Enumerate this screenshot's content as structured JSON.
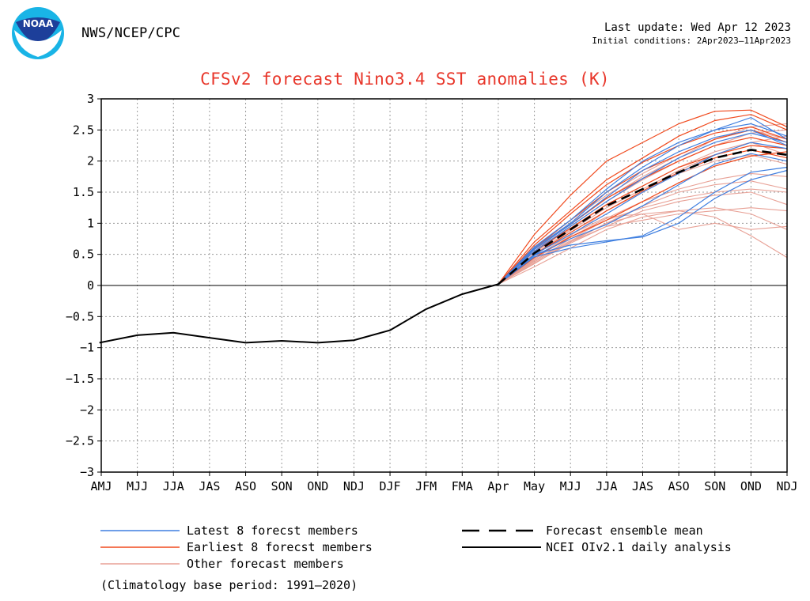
{
  "header": {
    "logo_text": "NOAA",
    "agency": "NWS/NCEP/CPC",
    "last_update": "Last update: Wed Apr 12 2023",
    "initial_conditions": "Initial conditions: 2Apr2023–11Apr2023"
  },
  "chart_data": {
    "type": "line",
    "title": "CFSv2 forecast Nino3.4 SST anomalies (K)",
    "xlabel": "",
    "ylabel": "",
    "ylim": [
      -3,
      3
    ],
    "yticks": [
      3,
      2.5,
      2,
      1.5,
      1,
      0.5,
      0,
      -0.5,
      -1,
      -1.5,
      -2,
      -2.5,
      -3
    ],
    "categories": [
      "AMJ",
      "MJJ",
      "JJA",
      "JAS",
      "ASO",
      "SON",
      "OND",
      "NDJ",
      "DJF",
      "JFM",
      "FMA",
      "Apr",
      "May",
      "MJJ",
      "JJA",
      "JAS",
      "ASO",
      "SON",
      "OND",
      "NDJ"
    ],
    "grid": true,
    "analysis": {
      "name": "NCEI OIv2.1 daily analysis",
      "color": "#000000",
      "x": [
        -0.05,
        1,
        2,
        3,
        4,
        5,
        6,
        7,
        8,
        9,
        10,
        11
      ],
      "values": [
        -0.92,
        -0.8,
        -0.76,
        -0.84,
        -0.92,
        -0.89,
        -0.92,
        -0.88,
        -0.72,
        -0.38,
        -0.14,
        0.02
      ]
    },
    "ensemble_mean": {
      "name": "Forecast ensemble mean",
      "color": "#000000",
      "x": [
        11,
        12,
        13,
        14,
        15,
        16,
        17,
        18,
        19
      ],
      "values": [
        0.02,
        0.52,
        0.9,
        1.28,
        1.55,
        1.82,
        2.05,
        2.18,
        2.1
      ]
    },
    "members_x": [
      11,
      12,
      13,
      14,
      15,
      16,
      17,
      18,
      19
    ],
    "latest_members": {
      "color": "#3f7fe0",
      "series": [
        [
          0.02,
          0.5,
          0.65,
          0.72,
          0.78,
          1.0,
          1.4,
          1.7,
          1.85
        ],
        [
          0.02,
          0.46,
          0.6,
          0.7,
          0.8,
          1.1,
          1.5,
          1.82,
          1.9
        ],
        [
          0.02,
          0.62,
          1.05,
          1.55,
          2.0,
          2.3,
          2.5,
          2.6,
          2.4
        ],
        [
          0.02,
          0.55,
          0.95,
          1.35,
          1.72,
          2.05,
          2.3,
          2.45,
          2.3
        ],
        [
          0.02,
          0.6,
          1.0,
          1.5,
          1.9,
          2.25,
          2.5,
          2.7,
          2.35
        ],
        [
          0.02,
          0.5,
          0.82,
          1.15,
          1.5,
          1.8,
          2.1,
          2.3,
          2.2
        ],
        [
          0.02,
          0.58,
          0.98,
          1.42,
          1.85,
          2.15,
          2.38,
          2.5,
          2.25
        ],
        [
          0.02,
          0.48,
          0.75,
          0.98,
          1.28,
          1.62,
          1.95,
          2.12,
          2.0
        ]
      ]
    },
    "earliest_members": {
      "color": "#f04a1e",
      "series": [
        [
          0.02,
          0.82,
          1.45,
          2.0,
          2.3,
          2.6,
          2.8,
          2.82,
          2.55
        ],
        [
          0.02,
          0.7,
          1.2,
          1.7,
          2.05,
          2.4,
          2.65,
          2.75,
          2.5
        ],
        [
          0.02,
          0.6,
          1.05,
          1.5,
          1.85,
          2.1,
          2.35,
          2.5,
          2.3
        ],
        [
          0.02,
          0.55,
          0.92,
          1.3,
          1.6,
          1.9,
          2.1,
          2.25,
          2.2
        ],
        [
          0.02,
          0.5,
          0.85,
          1.2,
          1.52,
          1.82,
          2.05,
          2.18,
          2.05
        ],
        [
          0.02,
          0.65,
          1.15,
          1.62,
          1.98,
          2.25,
          2.45,
          2.55,
          2.35
        ],
        [
          0.02,
          0.58,
          0.98,
          1.4,
          1.72,
          2.0,
          2.25,
          2.38,
          2.25
        ],
        [
          0.02,
          0.45,
          0.78,
          1.05,
          1.35,
          1.65,
          1.92,
          2.08,
          2.15
        ]
      ]
    },
    "other_members": {
      "color": "#e8a196",
      "series": [
        [
          0.02,
          0.3,
          0.6,
          0.9,
          1.1,
          1.2,
          1.1,
          0.8,
          0.45
        ],
        [
          0.02,
          0.35,
          0.7,
          1.0,
          1.15,
          1.2,
          1.25,
          1.15,
          0.9
        ],
        [
          0.02,
          0.4,
          0.75,
          1.05,
          1.25,
          1.4,
          1.5,
          1.55,
          1.5
        ],
        [
          0.02,
          0.45,
          0.82,
          1.1,
          1.15,
          0.9,
          1.0,
          0.9,
          0.95
        ],
        [
          0.02,
          0.38,
          0.7,
          0.95,
          1.2,
          1.35,
          1.45,
          1.5,
          1.3
        ],
        [
          0.02,
          0.5,
          0.9,
          1.3,
          1.6,
          1.9,
          2.15,
          2.3,
          2.1
        ],
        [
          0.02,
          0.55,
          1.0,
          1.4,
          1.75,
          2.05,
          2.35,
          2.55,
          2.6
        ],
        [
          0.02,
          0.42,
          0.8,
          1.2,
          1.5,
          1.8,
          2.0,
          2.1,
          1.95
        ],
        [
          0.02,
          0.48,
          0.88,
          1.25,
          1.55,
          1.85,
          2.1,
          2.3,
          2.4
        ],
        [
          0.02,
          0.36,
          0.68,
          0.95,
          1.05,
          1.15,
          1.2,
          1.25,
          1.2
        ],
        [
          0.02,
          0.52,
          0.95,
          1.35,
          1.7,
          2.0,
          2.25,
          2.45,
          2.5
        ],
        [
          0.02,
          0.44,
          0.78,
          1.08,
          1.35,
          1.55,
          1.7,
          1.8,
          1.75
        ],
        [
          0.02,
          0.6,
          1.05,
          1.45,
          1.8,
          2.1,
          2.35,
          2.5,
          2.35
        ],
        [
          0.02,
          0.4,
          0.72,
          1.0,
          1.28,
          1.5,
          1.62,
          1.68,
          1.55
        ]
      ]
    },
    "zero_line": true
  },
  "legend": {
    "latest": "Latest 8 forecst members",
    "earliest": "Earliest 8 forecst members",
    "other": "Other forecast members",
    "mean": "Forecast ensemble mean",
    "analysis": "NCEI OIv2.1 daily analysis",
    "climatology": "(Climatology base period: 1991–2020)"
  }
}
